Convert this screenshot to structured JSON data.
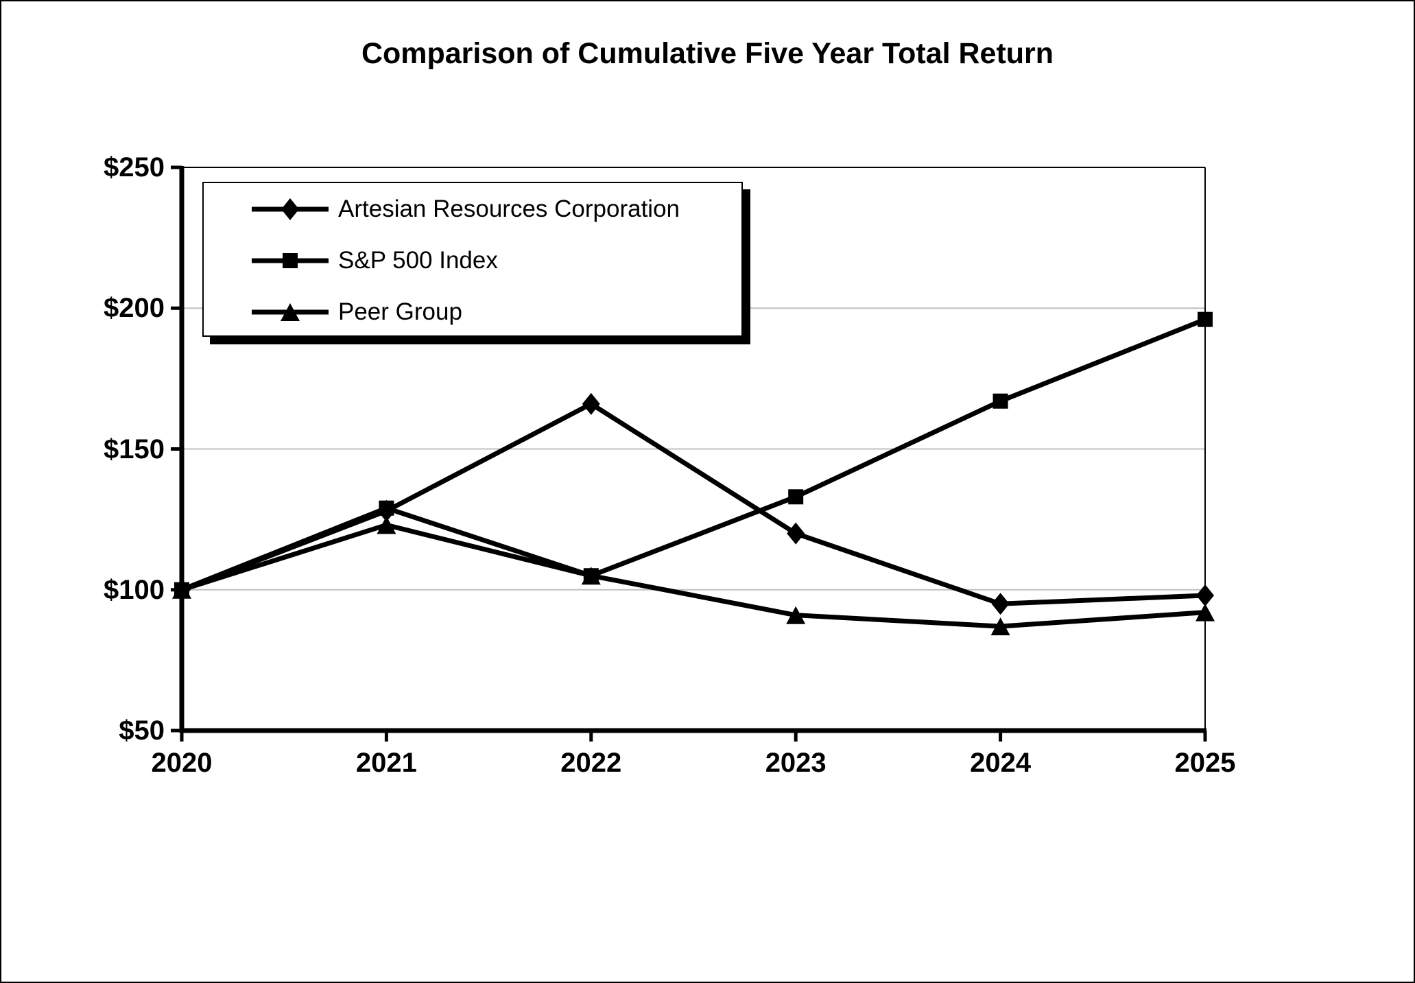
{
  "title": "Comparison of Cumulative Five Year Total Return",
  "chart_data": {
    "type": "line",
    "x": [
      2020,
      2021,
      2022,
      2023,
      2024,
      2025
    ],
    "x_tick_labels": [
      "2020",
      "2021",
      "2022",
      "2023",
      "2024",
      "2025"
    ],
    "y_tick_labels": [
      "$50",
      "$100",
      "$150",
      "$200",
      "$250"
    ],
    "y_tick_values": [
      50,
      100,
      150,
      200,
      250
    ],
    "ylim": [
      50,
      250
    ],
    "grid_values": [
      100,
      150,
      200
    ],
    "grid_on": true,
    "legend_position": "inside-top-left",
    "series": [
      {
        "name": "Artesian Resources Corporation",
        "marker": "diamond",
        "values": [
          100,
          128,
          166,
          120,
          95,
          98
        ]
      },
      {
        "name": "S&P 500 Index",
        "marker": "square",
        "values": [
          100,
          129,
          105,
          133,
          167,
          196
        ]
      },
      {
        "name": "Peer Group",
        "marker": "triangle",
        "values": [
          100,
          123,
          105,
          91,
          87,
          92
        ]
      }
    ],
    "draw_order": [
      0,
      2,
      1
    ],
    "colors": {
      "series": "#000000",
      "grid": "#c0c0c0",
      "background": "#ffffff"
    }
  }
}
